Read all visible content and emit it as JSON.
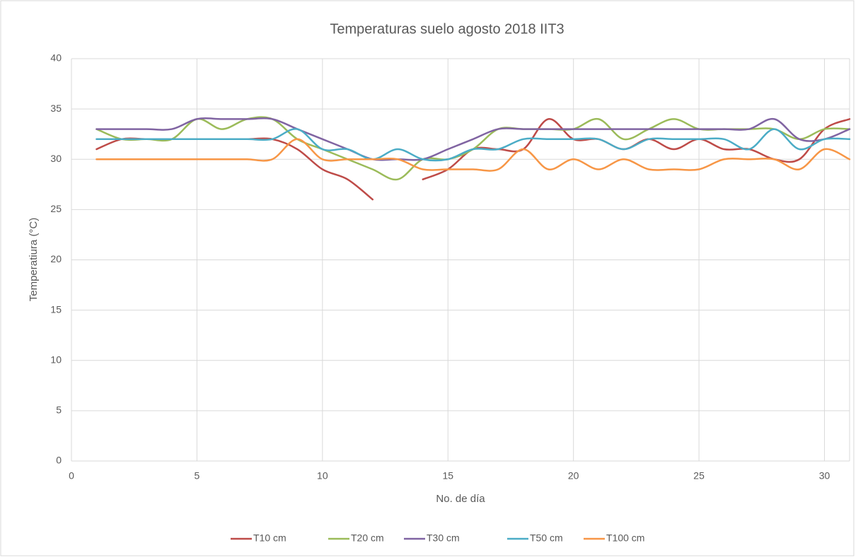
{
  "chart_data": {
    "type": "line",
    "title": "Temperaturas suelo agosto 2018 IIT3",
    "x_label": "No. de día",
    "y_label": "Temperatiura (°C)",
    "x": [
      1,
      2,
      3,
      4,
      5,
      6,
      7,
      8,
      9,
      10,
      11,
      12,
      13,
      14,
      15,
      16,
      17,
      18,
      19,
      20,
      21,
      22,
      23,
      24,
      25,
      26,
      27,
      28,
      29,
      30,
      31
    ],
    "series": [
      {
        "name": "T10 cm",
        "color": "#be4b48",
        "values": [
          31,
          32,
          32,
          32,
          32,
          32,
          32,
          32,
          31,
          29,
          28,
          26,
          null,
          28,
          29,
          31,
          31,
          31,
          34,
          32,
          32,
          31,
          32,
          31,
          32,
          31,
          31,
          30,
          30,
          33,
          34
        ]
      },
      {
        "name": "T20 cm",
        "color": "#9bbb59",
        "values": [
          33,
          32,
          32,
          32,
          34,
          33,
          34,
          34,
          32,
          31,
          30,
          29,
          28,
          30,
          30,
          31,
          33,
          33,
          33,
          33,
          34,
          32,
          33,
          34,
          33,
          33,
          33,
          33,
          32,
          33,
          33
        ]
      },
      {
        "name": "T30 cm",
        "color": "#8064a2",
        "values": [
          33,
          33,
          33,
          33,
          34,
          34,
          34,
          34,
          33,
          32,
          31,
          30,
          30,
          30,
          31,
          32,
          33,
          33,
          33,
          33,
          33,
          33,
          33,
          33,
          33,
          33,
          33,
          34,
          32,
          32,
          33
        ]
      },
      {
        "name": "T50 cm",
        "color": "#4bacc6",
        "values": [
          32,
          32,
          32,
          32,
          32,
          32,
          32,
          32,
          33,
          31,
          31,
          30,
          31,
          30,
          30,
          31,
          31,
          32,
          32,
          32,
          32,
          31,
          32,
          32,
          32,
          32,
          31,
          33,
          31,
          32,
          32
        ]
      },
      {
        "name": "T100 cm",
        "color": "#f79646",
        "values": [
          30,
          30,
          30,
          30,
          30,
          30,
          30,
          30,
          32,
          30,
          30,
          30,
          30,
          29,
          29,
          29,
          29,
          31,
          29,
          30,
          29,
          30,
          29,
          29,
          29,
          30,
          30,
          30,
          29,
          31,
          30
        ]
      }
    ],
    "xlim": [
      0,
      31
    ],
    "xticks": [
      0,
      5,
      10,
      15,
      20,
      25,
      30
    ],
    "ylim": [
      0,
      40
    ],
    "yticks": [
      0,
      5,
      10,
      15,
      20,
      25,
      30,
      35,
      40
    ],
    "grid": true,
    "legend": "bottom"
  }
}
